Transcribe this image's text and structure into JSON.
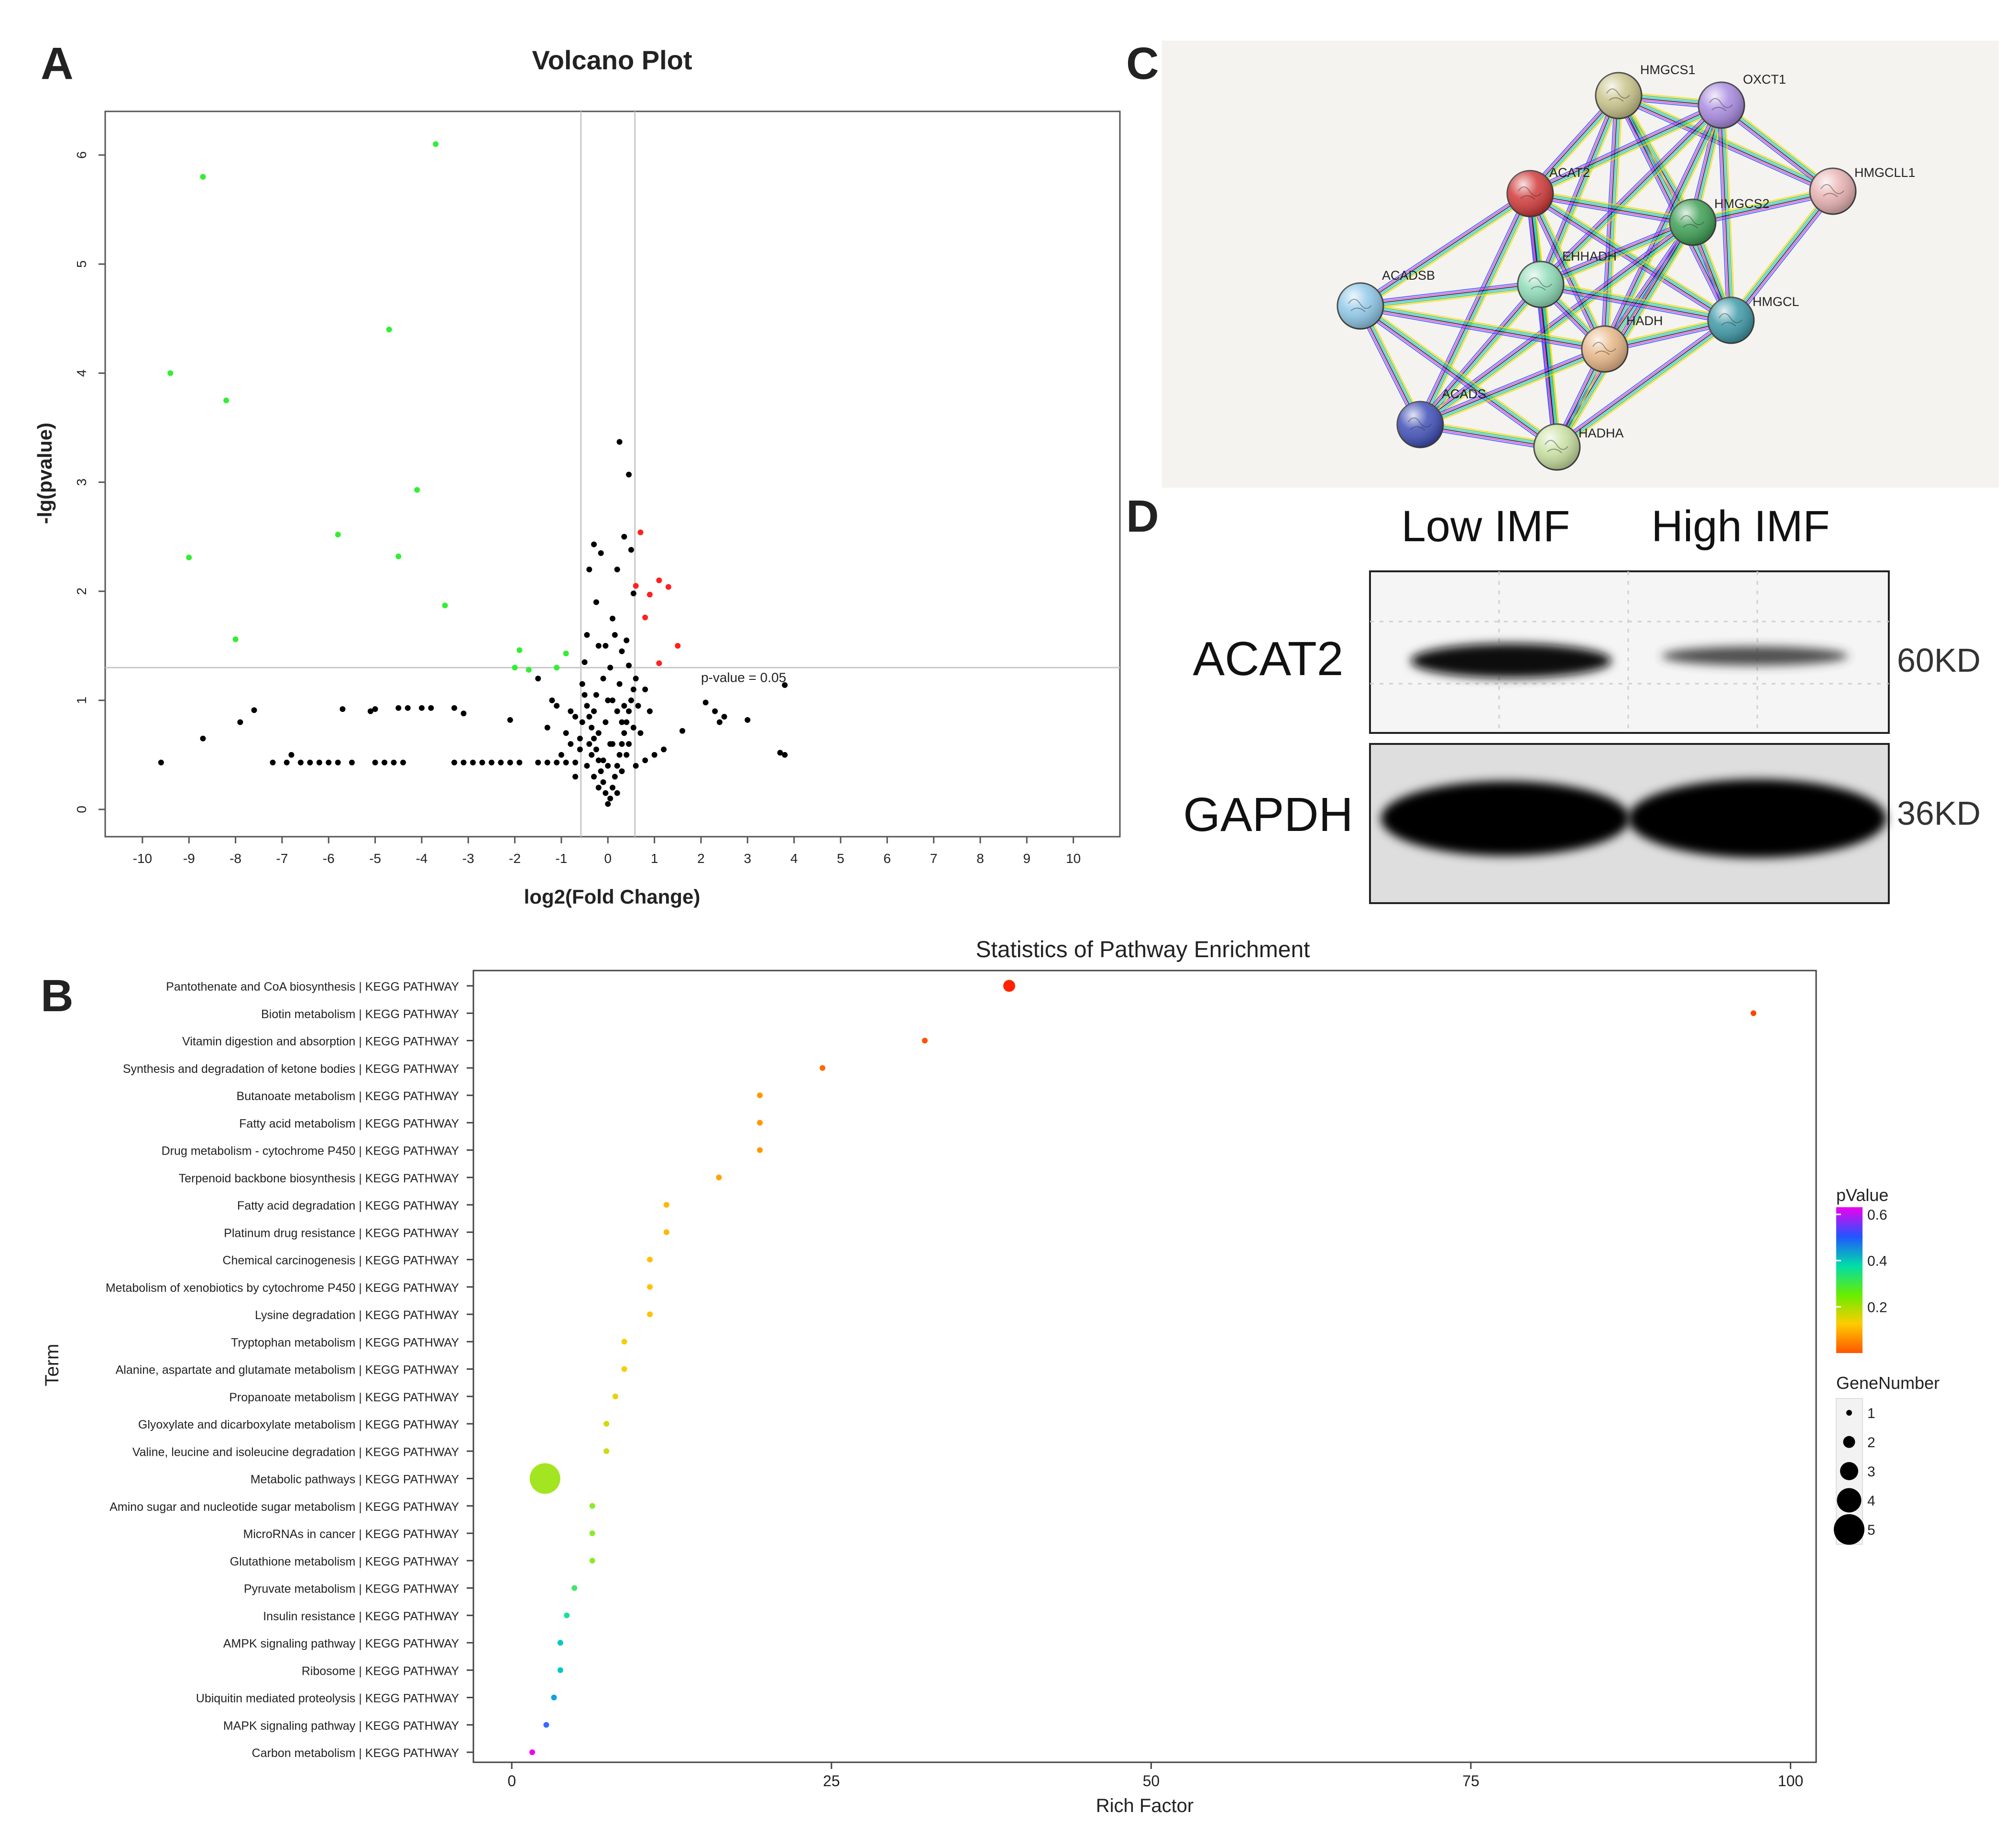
{
  "panels": {
    "a": "A",
    "b": "B",
    "c": "C",
    "d": "D"
  },
  "colors": {
    "up": "#ff2020",
    "down": "#33ee33",
    "ns": "#000000",
    "nodeStroke": "#444444"
  },
  "chart_data": [
    {
      "id": "volcano",
      "type": "scatter",
      "title": "Volcano Plot",
      "xlabel": "log2(Fold Change)",
      "ylabel": "-lg(pvalue)",
      "xlim": [
        -10.8,
        11
      ],
      "ylim": [
        -0.25,
        6.4
      ],
      "xticks": [
        -10,
        -9,
        -8,
        -7,
        -6,
        -5,
        -4,
        -3,
        -2,
        -1,
        0,
        1,
        2,
        3,
        4,
        5,
        6,
        7,
        8,
        9,
        10
      ],
      "yticks": [
        0,
        1,
        2,
        3,
        4,
        5,
        6
      ],
      "threshold_label": "p-value = 0.05",
      "threshold_y": 1.3,
      "fc_lines": [
        -0.58,
        0.58
      ],
      "series": [
        {
          "name": "down",
          "color": "#33ee33",
          "points": [
            [
              -3.7,
              6.1
            ],
            [
              -8.7,
              5.8
            ],
            [
              -4.7,
              4.4
            ],
            [
              -9.4,
              4.0
            ],
            [
              -8.2,
              3.75
            ],
            [
              -4.1,
              2.93
            ],
            [
              -5.8,
              2.52
            ],
            [
              -4.5,
              2.32
            ],
            [
              -9.0,
              2.31
            ],
            [
              -3.5,
              1.87
            ],
            [
              -8.0,
              1.56
            ],
            [
              -1.9,
              1.46
            ],
            [
              -0.9,
              1.43
            ],
            [
              -2.0,
              1.3
            ],
            [
              -1.7,
              1.28
            ],
            [
              -1.1,
              1.3
            ]
          ]
        },
        {
          "name": "up",
          "color": "#ff2020",
          "points": [
            [
              0.7,
              2.54
            ],
            [
              1.1,
              2.1
            ],
            [
              1.3,
              2.04
            ],
            [
              0.6,
              2.05
            ],
            [
              0.9,
              1.97
            ],
            [
              0.8,
              1.76
            ],
            [
              1.5,
              1.5
            ],
            [
              1.1,
              1.34
            ]
          ]
        },
        {
          "name": "ns",
          "color": "#000000",
          "points": [
            [
              0.25,
              3.37
            ],
            [
              0.45,
              3.07
            ],
            [
              0.35,
              2.5
            ],
            [
              -0.3,
              2.43
            ],
            [
              -0.15,
              2.35
            ],
            [
              0.5,
              2.38
            ],
            [
              -0.4,
              2.2
            ],
            [
              0.2,
              2.2
            ],
            [
              -0.25,
              1.9
            ],
            [
              0.55,
              1.98
            ],
            [
              0.1,
              1.75
            ],
            [
              -0.45,
              1.6
            ],
            [
              0.4,
              1.55
            ],
            [
              -0.2,
              1.5
            ],
            [
              0.3,
              1.45
            ],
            [
              -0.5,
              1.35
            ],
            [
              0.45,
              1.32
            ],
            [
              -1.5,
              1.2
            ],
            [
              -1.2,
              1.0
            ],
            [
              -1.1,
              0.95
            ],
            [
              -0.8,
              0.9
            ],
            [
              -0.7,
              0.85
            ],
            [
              -2.1,
              0.82
            ],
            [
              -1.3,
              0.75
            ],
            [
              -0.9,
              0.7
            ],
            [
              -0.8,
              0.6
            ],
            [
              -0.6,
              0.55
            ],
            [
              -1.0,
              0.5
            ],
            [
              -3.3,
              0.93
            ],
            [
              -3.1,
              0.88
            ],
            [
              -4.0,
              0.93
            ],
            [
              -3.8,
              0.93
            ],
            [
              -4.3,
              0.93
            ],
            [
              -4.5,
              0.93
            ],
            [
              -5.0,
              0.92
            ],
            [
              -5.1,
              0.9
            ],
            [
              -5.7,
              0.92
            ],
            [
              -7.6,
              0.91
            ],
            [
              -7.9,
              0.8
            ],
            [
              -8.7,
              0.65
            ],
            [
              -9.6,
              0.43
            ],
            [
              -7.2,
              0.43
            ],
            [
              -6.9,
              0.43
            ],
            [
              -6.6,
              0.43
            ],
            [
              -6.4,
              0.43
            ],
            [
              -6.2,
              0.43
            ],
            [
              -6.0,
              0.43
            ],
            [
              -5.8,
              0.43
            ],
            [
              -5.5,
              0.43
            ],
            [
              -5.0,
              0.43
            ],
            [
              -4.8,
              0.43
            ],
            [
              -4.6,
              0.43
            ],
            [
              -4.4,
              0.43
            ],
            [
              -3.3,
              0.43
            ],
            [
              -3.1,
              0.43
            ],
            [
              -2.9,
              0.43
            ],
            [
              -2.7,
              0.43
            ],
            [
              -2.5,
              0.43
            ],
            [
              -2.3,
              0.43
            ],
            [
              -2.1,
              0.43
            ],
            [
              -1.9,
              0.43
            ],
            [
              -1.5,
              0.43
            ],
            [
              -1.3,
              0.43
            ],
            [
              -1.1,
              0.43
            ],
            [
              -0.9,
              0.43
            ],
            [
              -0.7,
              0.43
            ],
            [
              -6.8,
              0.5
            ],
            [
              2.1,
              0.98
            ],
            [
              2.3,
              0.9
            ],
            [
              2.4,
              0.8
            ],
            [
              3.0,
              0.82
            ],
            [
              2.5,
              0.85
            ],
            [
              1.6,
              0.72
            ],
            [
              3.8,
              1.14
            ],
            [
              3.7,
              0.52
            ],
            [
              3.8,
              0.5
            ],
            [
              1.2,
              0.55
            ],
            [
              1.0,
              0.5
            ],
            [
              0.8,
              0.45
            ],
            [
              0.0,
              0.05
            ],
            [
              0.05,
              0.1
            ],
            [
              -0.05,
              0.15
            ],
            [
              0.1,
              0.2
            ],
            [
              -0.1,
              0.25
            ],
            [
              0.15,
              0.3
            ],
            [
              -0.15,
              0.35
            ],
            [
              0.2,
              0.4
            ],
            [
              -0.2,
              0.45
            ],
            [
              0.25,
              0.5
            ],
            [
              -0.25,
              0.55
            ],
            [
              0.3,
              0.6
            ],
            [
              -0.3,
              0.65
            ],
            [
              0.35,
              0.7
            ],
            [
              -0.35,
              0.75
            ],
            [
              0.4,
              0.8
            ],
            [
              -0.4,
              0.85
            ],
            [
              0.45,
              0.9
            ],
            [
              -0.45,
              0.95
            ],
            [
              0.5,
              1.0
            ],
            [
              -0.5,
              1.05
            ],
            [
              0.55,
              1.1
            ],
            [
              -0.55,
              1.15
            ],
            [
              0.6,
              1.2
            ],
            [
              0.0,
              0.4
            ],
            [
              0.05,
              0.6
            ],
            [
              -0.05,
              0.8
            ],
            [
              0.1,
              1.0
            ],
            [
              -0.1,
              1.2
            ],
            [
              0.2,
              0.9
            ],
            [
              -0.2,
              0.7
            ],
            [
              0.3,
              0.35
            ],
            [
              -0.3,
              0.3
            ],
            [
              0.0,
              1.0
            ],
            [
              0.05,
              1.3
            ],
            [
              -0.05,
              1.5
            ],
            [
              0.15,
              1.6
            ],
            [
              0.65,
              0.95
            ],
            [
              0.7,
              0.7
            ],
            [
              -0.6,
              0.65
            ],
            [
              0.8,
              1.1
            ],
            [
              0.9,
              0.9
            ],
            [
              -0.7,
              0.3
            ],
            [
              0.6,
              0.4
            ],
            [
              0.25,
              1.15
            ],
            [
              -0.25,
              1.05
            ],
            [
              0.35,
              0.95
            ],
            [
              -0.35,
              0.5
            ],
            [
              0.45,
              0.6
            ],
            [
              -0.45,
              0.4
            ],
            [
              0.55,
              0.75
            ],
            [
              -0.55,
              0.8
            ],
            [
              0.1,
              0.6
            ],
            [
              -0.1,
              0.45
            ],
            [
              0.2,
              0.15
            ],
            [
              -0.2,
              0.2
            ],
            [
              0.3,
              0.8
            ],
            [
              -0.3,
              0.9
            ],
            [
              0.4,
              0.5
            ],
            [
              -0.4,
              0.6
            ]
          ]
        }
      ]
    },
    {
      "id": "pathway",
      "type": "scatter",
      "title": "Statistics of Pathway Enrichment",
      "xlabel": "Rich Factor",
      "ylabel": "Term",
      "xlim": [
        -3,
        102
      ],
      "xticks": [
        0,
        25,
        50,
        75,
        100
      ],
      "terms": [
        "Pantothenate and CoA biosynthesis | KEGG PATHWAY",
        "Biotin metabolism | KEGG PATHWAY",
        "Vitamin digestion and absorption | KEGG PATHWAY",
        "Synthesis and degradation of ketone bodies | KEGG PATHWAY",
        "Butanoate metabolism | KEGG PATHWAY",
        "Fatty acid metabolism | KEGG PATHWAY",
        "Drug metabolism - cytochrome P450 | KEGG PATHWAY",
        "Terpenoid backbone biosynthesis | KEGG PATHWAY",
        "Fatty acid degradation | KEGG PATHWAY",
        "Platinum drug resistance | KEGG PATHWAY",
        "Chemical carcinogenesis | KEGG PATHWAY",
        "Metabolism of xenobiotics by cytochrome P450 | KEGG PATHWAY",
        "Lysine degradation | KEGG PATHWAY",
        "Tryptophan metabolism | KEGG PATHWAY",
        "Alanine, aspartate and glutamate metabolism | KEGG PATHWAY",
        "Propanoate metabolism | KEGG PATHWAY",
        "Glyoxylate and dicarboxylate metabolism | KEGG PATHWAY",
        "Valine, leucine and isoleucine degradation | KEGG PATHWAY",
        "Metabolic pathways | KEGG PATHWAY",
        "Amino sugar and nucleotide sugar metabolism | KEGG PATHWAY",
        "MicroRNAs in cancer | KEGG PATHWAY",
        "Glutathione metabolism | KEGG PATHWAY",
        "Pyruvate metabolism | KEGG PATHWAY",
        "Insulin resistance | KEGG PATHWAY",
        "AMPK signaling pathway | KEGG PATHWAY",
        "Ribosome | KEGG PATHWAY",
        "Ubiquitin mediated proteolysis | KEGG PATHWAY",
        "MAPK signaling pathway | KEGG PATHWAY",
        "Carbon metabolism | KEGG PATHWAY"
      ],
      "rich_factor": [
        38.9,
        97.1,
        32.3,
        24.3,
        19.4,
        19.4,
        19.4,
        16.2,
        12.1,
        12.1,
        10.8,
        10.8,
        10.8,
        8.8,
        8.8,
        8.1,
        7.4,
        7.4,
        2.6,
        6.3,
        6.3,
        6.3,
        4.9,
        4.3,
        3.8,
        3.8,
        3.3,
        2.7,
        1.6
      ],
      "p_value": [
        0.0,
        0.03,
        0.04,
        0.06,
        0.1,
        0.1,
        0.1,
        0.12,
        0.16,
        0.16,
        0.18,
        0.18,
        0.18,
        0.21,
        0.21,
        0.22,
        0.24,
        0.24,
        0.28,
        0.3,
        0.3,
        0.3,
        0.35,
        0.38,
        0.42,
        0.42,
        0.46,
        0.51,
        0.6
      ],
      "gene_number": [
        2,
        1,
        1,
        1,
        1,
        1,
        1,
        1,
        1,
        1,
        1,
        1,
        1,
        1,
        1,
        1,
        1,
        1,
        5,
        1,
        1,
        1,
        1,
        1,
        1,
        1,
        1,
        1,
        1
      ],
      "color_legend": {
        "title": "pValue",
        "ticks": [
          0.2,
          0.4,
          0.6
        ]
      },
      "size_legend": {
        "title": "GeneNumber",
        "values": [
          1,
          2,
          3,
          4,
          5
        ]
      }
    }
  ],
  "network": {
    "nodes": [
      {
        "id": "HMGCS1",
        "label": "HMGCS1",
        "color": "#c9c48a"
      },
      {
        "id": "OXCT1",
        "label": "OXCT1",
        "color": "#a98be0"
      },
      {
        "id": "HMGCLL1",
        "label": "HMGCLL1",
        "color": "#e8b2b2"
      },
      {
        "id": "ACAT2",
        "label": "ACAT2",
        "color": "#d23a3a"
      },
      {
        "id": "HMGCS2",
        "label": "HMGCS2",
        "color": "#3fa055"
      },
      {
        "id": "EHHADH",
        "label": "EHHADH",
        "color": "#8fdcb8"
      },
      {
        "id": "ACADSB",
        "label": "ACADSB",
        "color": "#8fc8e8"
      },
      {
        "id": "HADH",
        "label": "HADH",
        "color": "#e8b888"
      },
      {
        "id": "HMGCL",
        "label": "HMGCL",
        "color": "#3f9aa8"
      },
      {
        "id": "ACADS",
        "label": "ACADS",
        "color": "#4050b8"
      },
      {
        "id": "HADHA",
        "label": "HADHA",
        "color": "#c8e0a0"
      }
    ],
    "edges": [
      [
        "HMGCS1",
        "OXCT1"
      ],
      [
        "HMGCS1",
        "ACAT2"
      ],
      [
        "HMGCS1",
        "HMGCS2"
      ],
      [
        "HMGCS1",
        "EHHADH"
      ],
      [
        "HMGCS1",
        "HADH"
      ],
      [
        "HMGCS1",
        "HMGCL"
      ],
      [
        "HMGCS1",
        "HMGCLL1"
      ],
      [
        "OXCT1",
        "ACAT2"
      ],
      [
        "OXCT1",
        "HMGCS2"
      ],
      [
        "OXCT1",
        "EHHADH"
      ],
      [
        "OXCT1",
        "HADH"
      ],
      [
        "OXCT1",
        "HMGCL"
      ],
      [
        "OXCT1",
        "HMGCLL1"
      ],
      [
        "ACAT2",
        "HMGCS2"
      ],
      [
        "ACAT2",
        "EHHADH"
      ],
      [
        "ACAT2",
        "HADH"
      ],
      [
        "ACAT2",
        "ACADSB"
      ],
      [
        "ACAT2",
        "ACADS"
      ],
      [
        "ACAT2",
        "HADHA"
      ],
      [
        "ACAT2",
        "HMGCL"
      ],
      [
        "HMGCS2",
        "EHHADH"
      ],
      [
        "HMGCS2",
        "HADH"
      ],
      [
        "HMGCS2",
        "HMGCL"
      ],
      [
        "HMGCS2",
        "HMGCLL1"
      ],
      [
        "HMGCS2",
        "HADHA"
      ],
      [
        "HMGCS2",
        "ACADS"
      ],
      [
        "EHHADH",
        "ACADSB"
      ],
      [
        "EHHADH",
        "HADH"
      ],
      [
        "EHHADH",
        "ACADS"
      ],
      [
        "EHHADH",
        "HADHA"
      ],
      [
        "EHHADH",
        "HMGCL"
      ],
      [
        "ACADSB",
        "HADH"
      ],
      [
        "ACADSB",
        "ACADS"
      ],
      [
        "ACADSB",
        "HADHA"
      ],
      [
        "HADH",
        "ACADS"
      ],
      [
        "HADH",
        "HADHA"
      ],
      [
        "HADH",
        "HMGCL"
      ],
      [
        "ACADS",
        "HADHA"
      ],
      [
        "HMGCL",
        "HMGCLL1"
      ],
      [
        "HMGCL",
        "HADHA"
      ]
    ]
  },
  "blot": {
    "groups": [
      "Low  IMF",
      "High IMF"
    ],
    "rows": [
      {
        "name": "ACAT2",
        "size": "60KD"
      },
      {
        "name": "GAPDH",
        "size": "36KD"
      }
    ]
  }
}
